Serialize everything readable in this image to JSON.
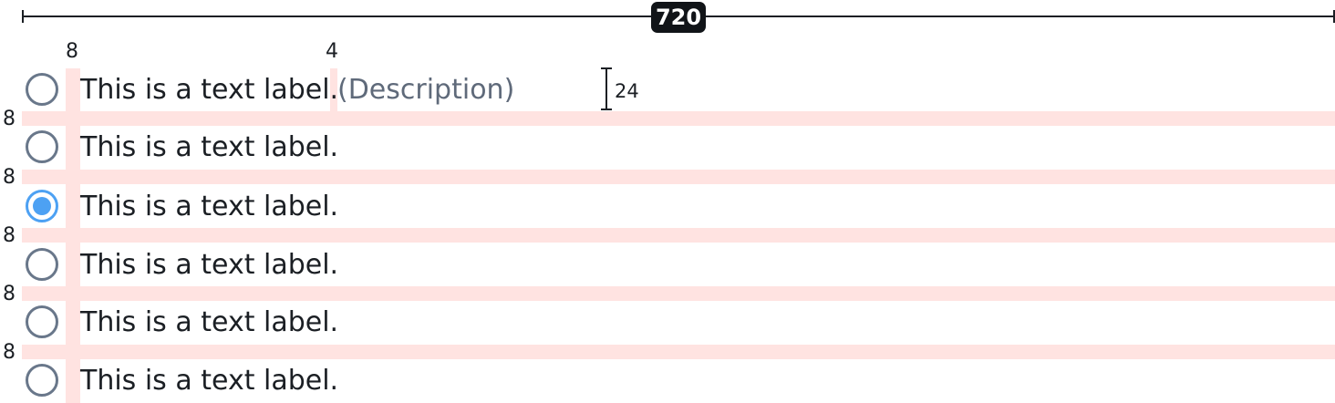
{
  "spec": {
    "total_width_label": "720",
    "icon_gap_label": "8",
    "description_gap_label": "4",
    "row_height_label": "24",
    "row_spacing_labels": [
      "8",
      "8",
      "8",
      "8",
      "8"
    ]
  },
  "radios": [
    {
      "label": "This is a text label.",
      "description": "(Description)",
      "checked": false
    },
    {
      "label": "This is a text label.",
      "checked": false
    },
    {
      "label": "This is a text label.",
      "checked": true
    },
    {
      "label": "This is a text label.",
      "checked": false
    },
    {
      "label": "This is a text label.",
      "checked": false
    },
    {
      "label": "This is a text label.",
      "checked": false
    }
  ],
  "colors": {
    "spacing_highlight": "#ffe3e1",
    "radio_border": "#69778a",
    "radio_selected": "#4da1f3",
    "description_text": "#5f6a7a"
  }
}
